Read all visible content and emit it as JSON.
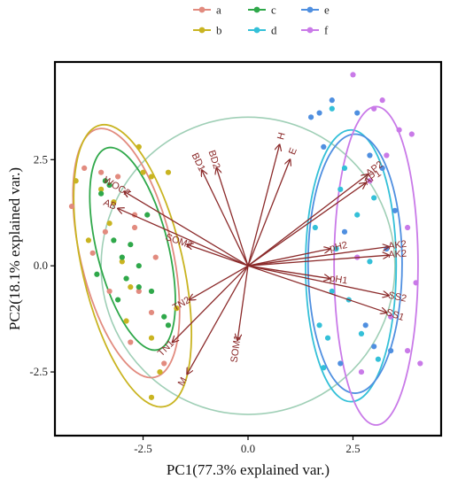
{
  "chart_data": {
    "type": "scatter",
    "title": "",
    "xlabel": "PC1(77.3% explained var.)",
    "ylabel": "PC2(18.1% explained var.)",
    "xlim": [
      -4.6,
      4.6
    ],
    "ylim": [
      -4.0,
      4.8
    ],
    "xticks": [
      {
        "value": -2.5,
        "label": "-2.5"
      },
      {
        "value": 0.0,
        "label": "0.0"
      },
      {
        "value": 2.5,
        "label": "2.5"
      }
    ],
    "yticks": [
      {
        "value": 2.5,
        "label": "2.5"
      },
      {
        "value": 0.0,
        "label": "0.0"
      },
      {
        "value": -2.5,
        "label": "-2.5"
      }
    ],
    "grid": false,
    "legend_position": "top",
    "colors": {
      "a": "#e28b7f",
      "b": "#c9b421",
      "c": "#2fa84a",
      "d": "#34c0d8",
      "e": "#4f8fe0",
      "f": "#c97ae8",
      "arrow": "#8b2a2a",
      "circle": "#9fcfb6"
    },
    "series": [
      {
        "name": "a",
        "color": "#e28b7f",
        "ellipse": {
          "cx": -2.9,
          "cy": 0.3,
          "rx": 1.1,
          "ry": 3.0,
          "angle": -13
        },
        "points": [
          [
            -4.2,
            1.4
          ],
          [
            -3.9,
            2.3
          ],
          [
            -3.7,
            0.3
          ],
          [
            -3.5,
            2.2
          ],
          [
            -3.3,
            -0.6
          ],
          [
            -3.1,
            2.1
          ],
          [
            -2.7,
            1.2
          ],
          [
            -2.8,
            -1.8
          ],
          [
            -2.6,
            -0.6
          ],
          [
            -2.3,
            -1.1
          ],
          [
            -2.0,
            -2.3
          ],
          [
            -3.4,
            0.8
          ],
          [
            -2.7,
            0.9
          ],
          [
            -2.2,
            0.2
          ]
        ]
      },
      {
        "name": "b",
        "color": "#c9b421",
        "ellipse": {
          "cx": -2.75,
          "cy": 0.0,
          "rx": 1.2,
          "ry": 3.4,
          "angle": -13
        },
        "points": [
          [
            -4.1,
            2.0
          ],
          [
            -3.8,
            0.6
          ],
          [
            -3.5,
            1.8
          ],
          [
            -3.2,
            1.5
          ],
          [
            -3.0,
            0.1
          ],
          [
            -2.8,
            -0.5
          ],
          [
            -2.5,
            2.2
          ],
          [
            -2.3,
            2.1
          ],
          [
            -1.9,
            2.2
          ],
          [
            -1.7,
            -1.0
          ],
          [
            -2.1,
            -2.5
          ],
          [
            -2.3,
            -3.1
          ],
          [
            -2.3,
            -1.7
          ],
          [
            -2.6,
            2.8
          ],
          [
            -3.3,
            1.0
          ],
          [
            -2.9,
            -1.3
          ]
        ]
      },
      {
        "name": "c",
        "color": "#2fa84a",
        "ellipse": {
          "cx": -2.75,
          "cy": 0.4,
          "rx": 0.85,
          "ry": 2.45,
          "angle": -14
        },
        "points": [
          [
            -3.5,
            1.7
          ],
          [
            -3.3,
            1.9
          ],
          [
            -3.2,
            0.6
          ],
          [
            -3.0,
            0.2
          ],
          [
            -2.9,
            -0.3
          ],
          [
            -2.6,
            0.0
          ],
          [
            -2.6,
            -0.5
          ],
          [
            -2.3,
            -0.6
          ],
          [
            -2.0,
            -1.2
          ],
          [
            -1.9,
            -1.4
          ],
          [
            -3.4,
            2.0
          ],
          [
            -3.1,
            -0.8
          ],
          [
            -2.4,
            1.2
          ],
          [
            -3.6,
            -0.2
          ],
          [
            -2.8,
            0.5
          ]
        ]
      },
      {
        "name": "d",
        "color": "#34c0d8",
        "ellipse": {
          "cx": 2.45,
          "cy": 0.0,
          "rx": 1.08,
          "ry": 3.2,
          "angle": 0
        },
        "points": [
          [
            2.0,
            3.7
          ],
          [
            2.3,
            2.3
          ],
          [
            1.8,
            -2.4
          ],
          [
            1.9,
            -1.7
          ],
          [
            2.1,
            0.4
          ],
          [
            2.4,
            -0.8
          ],
          [
            2.6,
            1.2
          ],
          [
            2.9,
            0.1
          ],
          [
            3.1,
            -2.2
          ],
          [
            2.0,
            -0.6
          ],
          [
            1.7,
            -1.4
          ],
          [
            2.2,
            1.8
          ],
          [
            2.7,
            -1.6
          ],
          [
            3.0,
            1.6
          ],
          [
            1.6,
            0.9
          ]
        ]
      },
      {
        "name": "e",
        "color": "#4f8fe0",
        "ellipse": {
          "cx": 2.55,
          "cy": 0.05,
          "rx": 1.12,
          "ry": 3.05,
          "angle": 0
        },
        "points": [
          [
            1.5,
            3.5
          ],
          [
            1.7,
            3.6
          ],
          [
            2.0,
            3.9
          ],
          [
            2.6,
            3.6
          ],
          [
            2.9,
            2.6
          ],
          [
            3.3,
            0.4
          ],
          [
            3.5,
            1.3
          ],
          [
            3.4,
            -2.0
          ],
          [
            3.0,
            -1.9
          ],
          [
            2.8,
            -1.4
          ],
          [
            1.8,
            2.8
          ],
          [
            2.2,
            -2.3
          ],
          [
            3.2,
            2.3
          ],
          [
            2.3,
            0.8
          ]
        ]
      },
      {
        "name": "f",
        "color": "#c97ae8",
        "ellipse": {
          "cx": 3.05,
          "cy": 0.0,
          "rx": 1.0,
          "ry": 3.75,
          "angle": 0
        },
        "points": [
          [
            2.5,
            4.5
          ],
          [
            3.0,
            3.7
          ],
          [
            3.3,
            2.6
          ],
          [
            3.9,
            3.1
          ],
          [
            3.8,
            0.9
          ],
          [
            4.0,
            -0.4
          ],
          [
            3.8,
            -2.0
          ],
          [
            4.1,
            -2.3
          ],
          [
            3.4,
            -1.2
          ],
          [
            2.6,
            0.2
          ],
          [
            2.9,
            2.0
          ],
          [
            3.6,
            3.2
          ],
          [
            2.7,
            -2.5
          ],
          [
            3.2,
            3.9
          ]
        ]
      }
    ],
    "biplot_vectors": [
      {
        "name": "H",
        "x": 0.75,
        "y": 2.85
      },
      {
        "name": "E",
        "x": 1.0,
        "y": 2.5
      },
      {
        "name": "BD2",
        "x": -0.75,
        "y": 2.3
      },
      {
        "name": "BD1",
        "x": -1.1,
        "y": 2.25
      },
      {
        "name": "AP2",
        "x": 2.85,
        "y": 2.15
      },
      {
        "name": "AP1",
        "x": 2.8,
        "y": 1.95
      },
      {
        "name": "AK2",
        "x": 3.35,
        "y": 0.45
      },
      {
        "name": "AK2",
        "x": 3.35,
        "y": 0.25
      },
      {
        "name": "pH2",
        "x": 1.95,
        "y": 0.4
      },
      {
        "name": "pH1",
        "x": 1.95,
        "y": -0.3
      },
      {
        "name": "SS2",
        "x": 3.35,
        "y": -0.7
      },
      {
        "name": "SS1",
        "x": 3.3,
        "y": -1.1
      },
      {
        "name": "SOM2",
        "x": -1.45,
        "y": 0.5
      },
      {
        "name": "SOM1",
        "x": -0.25,
        "y": -1.75
      },
      {
        "name": "AB",
        "x": -3.1,
        "y": 1.35
      },
      {
        "name": "WOC2",
        "x": -2.95,
        "y": 1.75
      },
      {
        "name": "TN2",
        "x": -1.4,
        "y": -0.8
      },
      {
        "name": "TN1",
        "x": -1.8,
        "y": -1.8
      },
      {
        "name": "M",
        "x": -1.45,
        "y": -2.55
      }
    ],
    "correlation_circle_radius": 3.5
  }
}
